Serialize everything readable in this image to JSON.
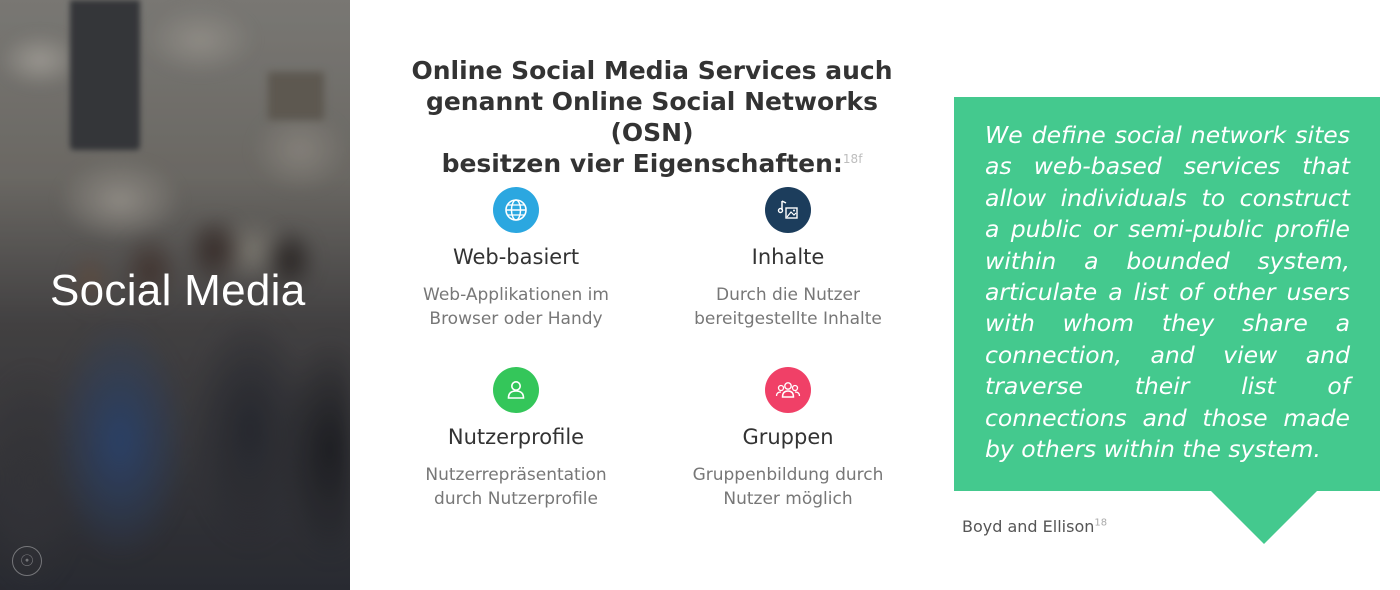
{
  "left_panel": {
    "title": "Social Media"
  },
  "heading": {
    "line1": "Online Social Media Services auch",
    "line2": "genannt Online Social Networks (OSN)",
    "line3": "besitzen vier Eigenschaften:",
    "footnote": "18f"
  },
  "features": [
    {
      "icon": "globe-icon",
      "title": "Web-basiert",
      "desc_line1": "Web-Applikationen im",
      "desc_line2": "Browser oder Handy",
      "color": "#2ba7e0"
    },
    {
      "icon": "media-content-icon",
      "title": "Inhalte",
      "desc_line1": "Durch die Nutzer",
      "desc_line2": "bereitgestellte Inhalte",
      "color": "#1c3d5c"
    },
    {
      "icon": "user-profile-icon",
      "title": "Nutzerprofile",
      "desc_line1": "Nutzerrepräsentation",
      "desc_line2": "durch Nutzerprofile",
      "color": "#34c65a"
    },
    {
      "icon": "group-icon",
      "title": "Gruppen",
      "desc_line1": "Gruppenbildung durch",
      "desc_line2": "Nutzer möglich",
      "color": "#f04067"
    }
  ],
  "quote": {
    "text": "We define social network sites as web-based services that allow individuals to construct a public or semi-public profile within a bounded system, articulate a list of other users with whom they share a connection, and view and traverse their list of connections and those made by others within the system.",
    "source": "Boyd and Ellison",
    "source_footnote": "18",
    "color": "#44c98e"
  }
}
